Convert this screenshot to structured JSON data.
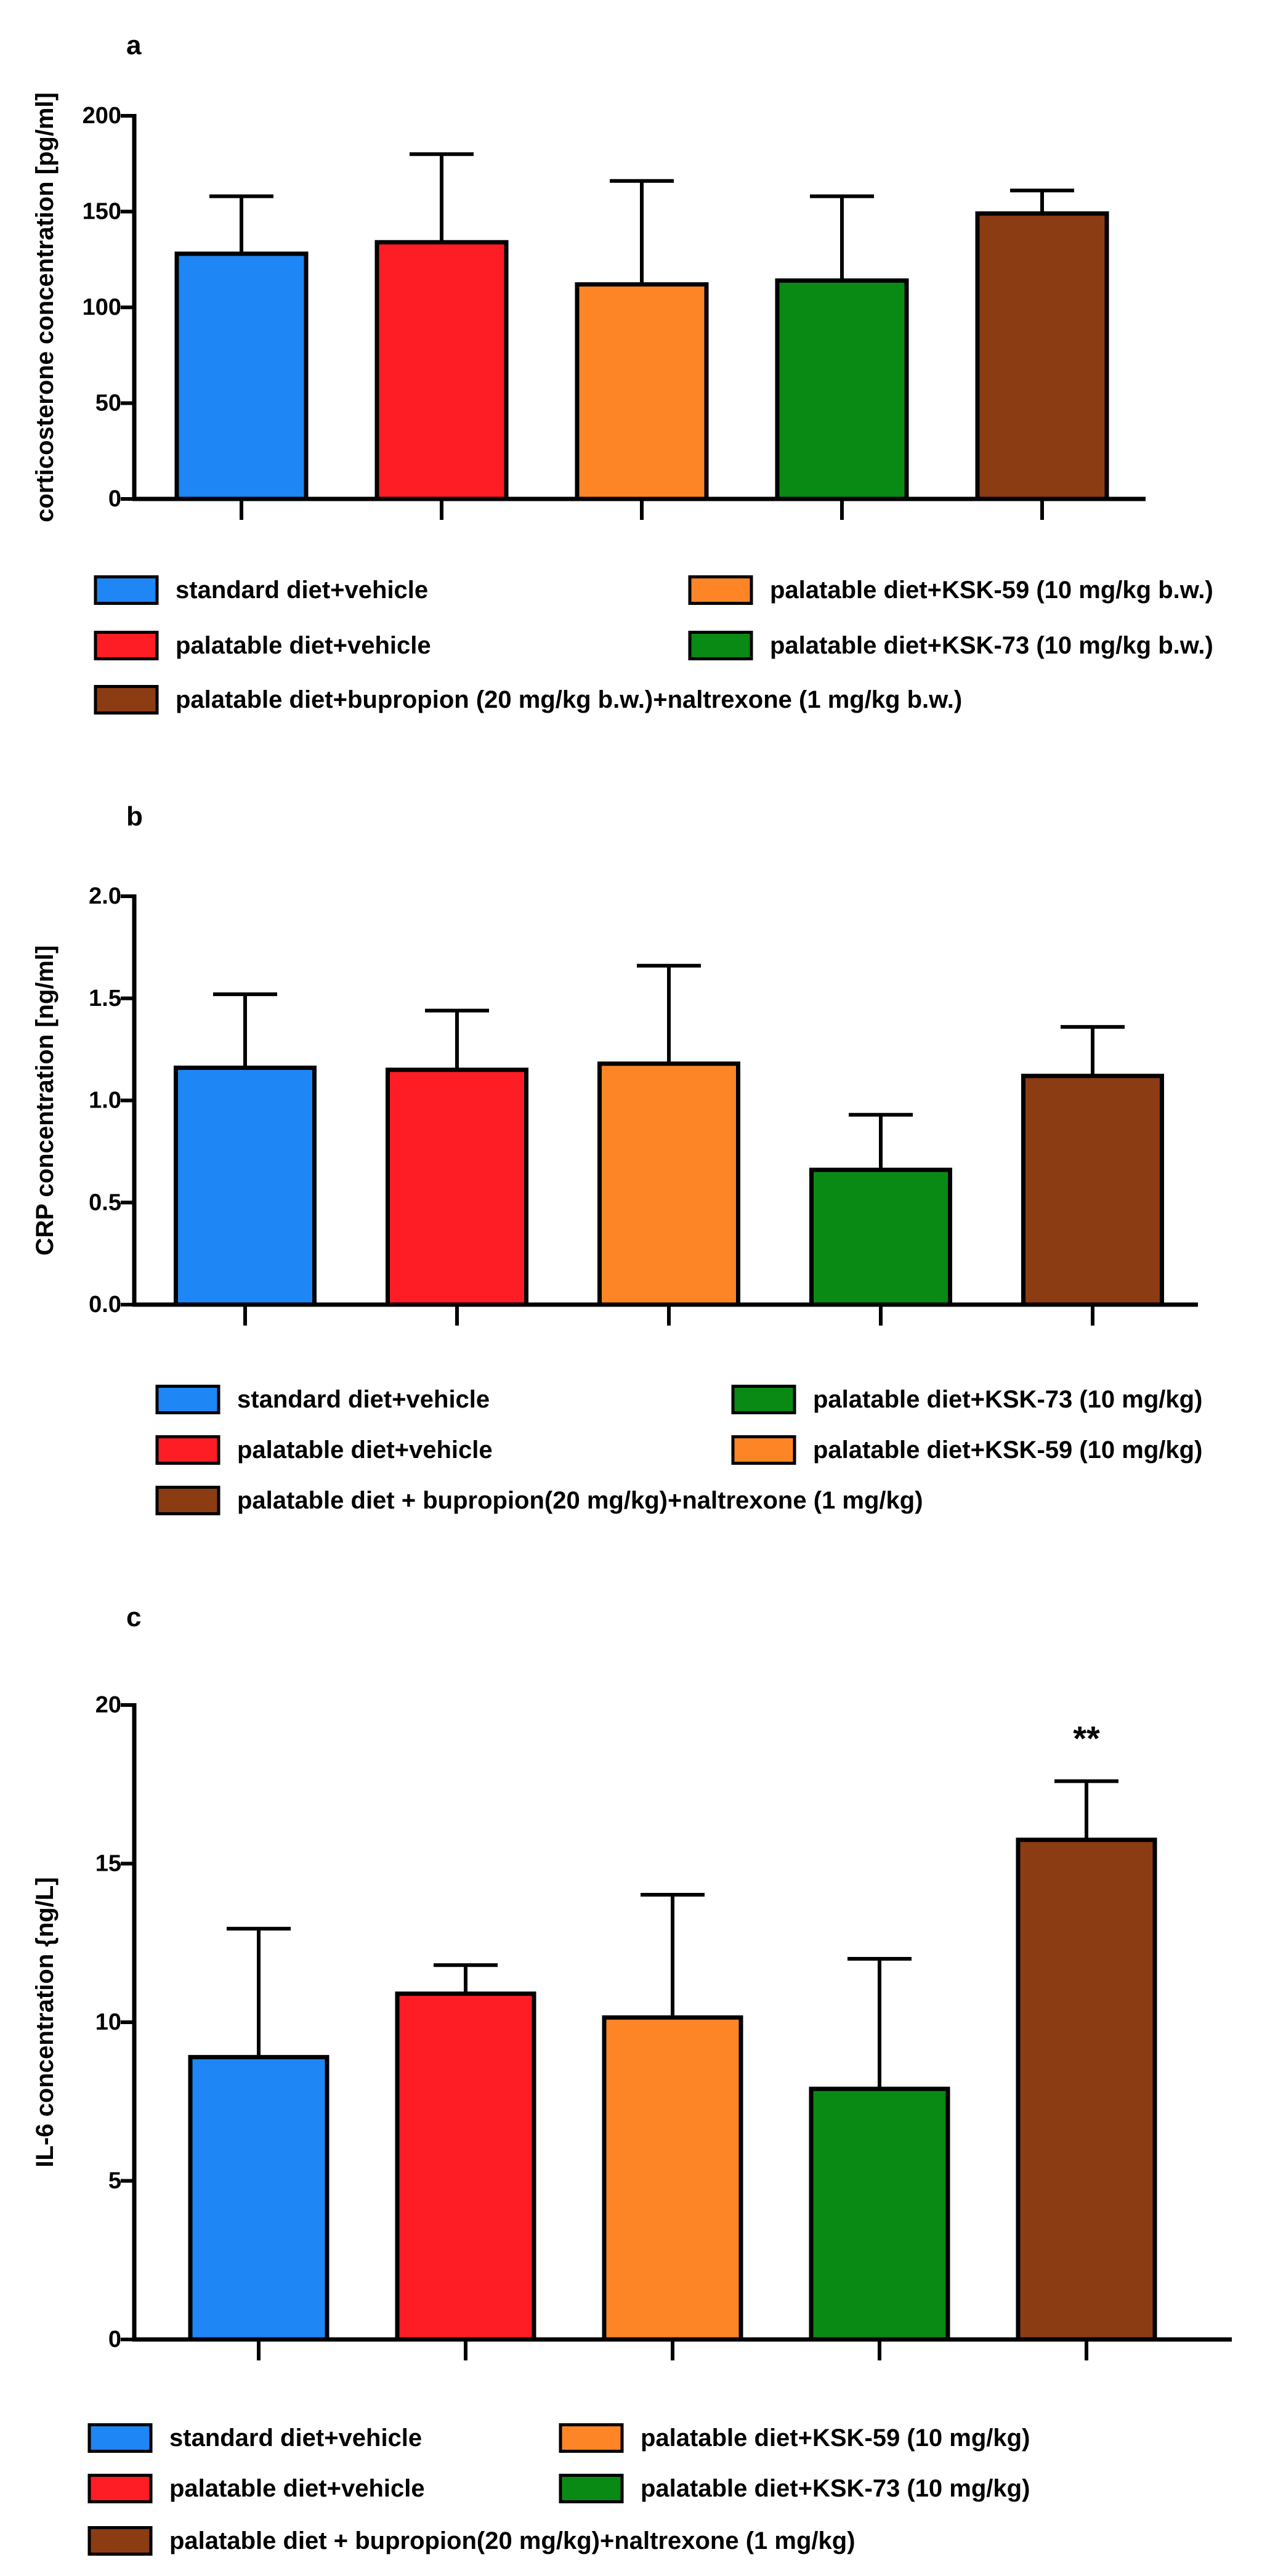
{
  "colors": {
    "standard": "#1E86F5",
    "palatable": "#FE1C25",
    "ksk59": "#FE8526",
    "ksk73": "#098A14",
    "combo": "#8C3C12",
    "axis": "#000000"
  },
  "chart_data": [
    {
      "panel_label": "a",
      "type": "bar",
      "title": "",
      "xlabel": "",
      "ylabel": "corticosterone  concentration [pg/ml]",
      "ylim": [
        0,
        200
      ],
      "yticks": [
        "0",
        "50",
        "100",
        "150",
        "200"
      ],
      "ytick_values": [
        0,
        50,
        100,
        150,
        200
      ],
      "values": [
        128,
        134,
        112,
        114,
        149
      ],
      "errors": [
        30,
        46,
        54,
        44,
        12
      ],
      "bar_colors": [
        "#1E86F5",
        "#FE1C25",
        "#FE8526",
        "#098A14",
        "#8C3C12"
      ],
      "annotations": [
        "",
        "",
        "",
        "",
        ""
      ],
      "legend": [
        {
          "label": "standard diet+vehicle",
          "color": "#1E86F5"
        },
        {
          "label": "palatable diet+KSK-59 (10 mg/kg b.w.)",
          "color": "#FE8526"
        },
        {
          "label": "palatable diet+vehicle",
          "color": "#FE1C25"
        },
        {
          "label": "palatable diet+KSK-73 (10 mg/kg b.w.)",
          "color": "#098A14"
        },
        {
          "label": "palatable diet+bupropion (20 mg/kg b.w.)+naltrexone (1 mg/kg b.w.)",
          "color": "#8C3C12"
        }
      ]
    },
    {
      "panel_label": "b",
      "type": "bar",
      "title": "",
      "xlabel": "",
      "ylabel": "CRP concentration [ng/ml]",
      "ylim": [
        0,
        2
      ],
      "yticks": [
        "0.0",
        "0.5",
        "1.0",
        "1.5",
        "2.0"
      ],
      "ytick_values": [
        0,
        0.5,
        1.0,
        1.5,
        2.0
      ],
      "values": [
        1.16,
        1.15,
        1.18,
        0.66,
        1.12
      ],
      "errors": [
        0.36,
        0.29,
        0.48,
        0.27,
        0.24
      ],
      "bar_colors": [
        "#1E86F5",
        "#FE1C25",
        "#FE8526",
        "#098A14",
        "#8C3C12"
      ],
      "annotations": [
        "",
        "",
        "",
        "",
        ""
      ],
      "legend": [
        {
          "label": "standard diet+vehicle",
          "color": "#1E86F5"
        },
        {
          "label": "palatable diet+KSK-73 (10 mg/kg)",
          "color": "#098A14"
        },
        {
          "label": "palatable diet+vehicle",
          "color": "#FE1C25"
        },
        {
          "label": "palatable diet+KSK-59 (10 mg/kg)",
          "color": "#FE8526"
        },
        {
          "label": "palatable diet + bupropion(20 mg/kg)+naltrexone (1 mg/kg)",
          "color": "#8C3C12"
        }
      ]
    },
    {
      "panel_label": "c",
      "type": "bar",
      "title": "",
      "xlabel": "",
      "ylabel": "IL-6 concentration {ng/L]",
      "ylim": [
        0,
        20
      ],
      "yticks": [
        "0",
        "5",
        "10",
        "15",
        "20"
      ],
      "ytick_values": [
        0,
        5,
        10,
        15,
        20
      ],
      "values": [
        8.9,
        10.9,
        10.15,
        7.9,
        15.75
      ],
      "errors": [
        4.05,
        0.9,
        3.87,
        4.1,
        1.85
      ],
      "bar_colors": [
        "#1E86F5",
        "#FE1C25",
        "#FE8526",
        "#098A14",
        "#8C3C12"
      ],
      "annotations": [
        "",
        "",
        "",
        "",
        "**"
      ],
      "legend": [
        {
          "label": "standard diet+vehicle",
          "color": "#1E86F5"
        },
        {
          "label": "palatable diet+KSK-59 (10 mg/kg)",
          "color": "#FE8526"
        },
        {
          "label": "palatable diet+vehicle",
          "color": "#FE1C25"
        },
        {
          "label": "palatable diet+KSK-73 (10 mg/kg)",
          "color": "#098A14"
        },
        {
          "label": "palatable diet + bupropion(20 mg/kg)+naltrexone (1 mg/kg)",
          "color": "#8C3C12"
        }
      ]
    }
  ]
}
